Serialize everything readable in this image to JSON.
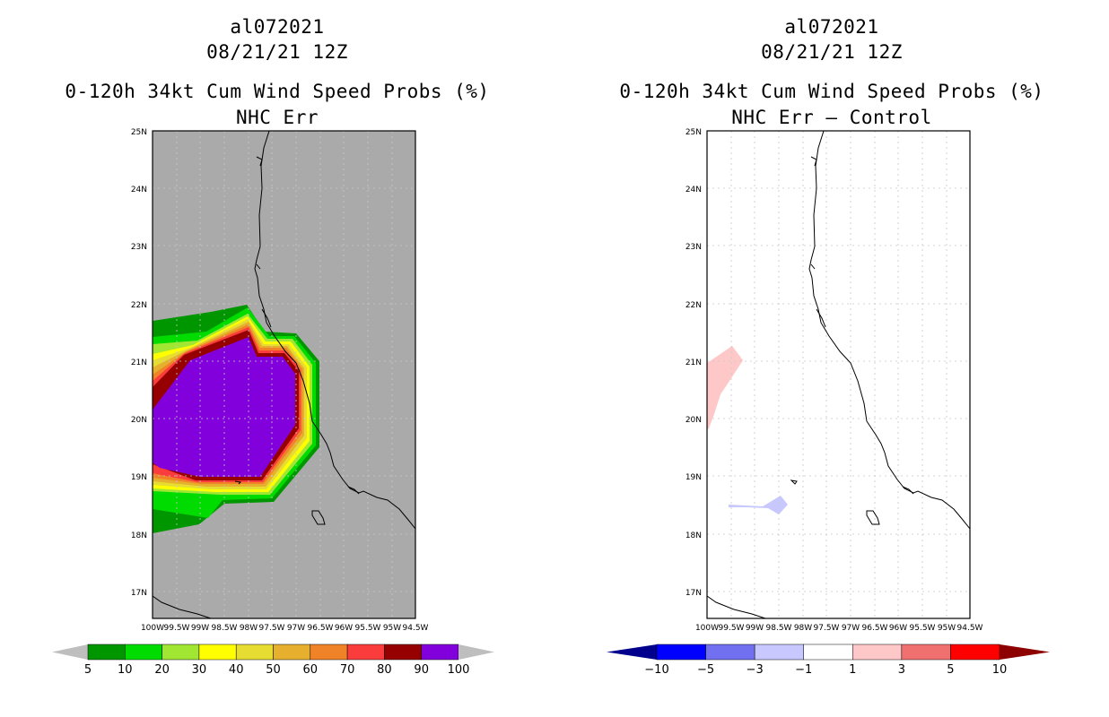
{
  "panels": [
    {
      "storm_id": "al072021",
      "datetime": "08/21/21 12Z",
      "product": "0-120h 34kt Cum Wind Speed Probs (%)",
      "subtitle": "NHC Err",
      "colorbar_labels": [
        "5",
        "10",
        "20",
        "30",
        "40",
        "50",
        "60",
        "70",
        "80",
        "90",
        "100"
      ],
      "colorbar_colors": [
        "#009600",
        "#00dc00",
        "#a0e632",
        "#ffff00",
        "#e6dc32",
        "#e6af2d",
        "#f08228",
        "#fa3c3c",
        "#960000",
        "#8200dc"
      ],
      "colorbar_end_colors": [
        "#bebebe",
        "#bebebe"
      ]
    },
    {
      "storm_id": "al072021",
      "datetime": "08/21/21 12Z",
      "product": "0-120h 34kt Cum Wind Speed Probs (%)",
      "subtitle": "NHC Err – Control",
      "colorbar_labels": [
        "−10",
        "−5",
        "−3",
        "−1",
        "1",
        "3",
        "5",
        "10"
      ],
      "colorbar_colors": [
        "#0000ff",
        "#7070f0",
        "#c8c8ff",
        "#ffffff",
        "#ffc8c8",
        "#f07070",
        "#ff0000"
      ],
      "colorbar_end_colors": [
        "#00008c",
        "#8c0000"
      ]
    }
  ],
  "map": {
    "lat_labels": [
      "25N",
      "24N",
      "23N",
      "22N",
      "21N",
      "20N",
      "19N",
      "18N",
      "17N"
    ],
    "lon_labels": [
      "100W",
      "99.5W",
      "99W",
      "98.5W",
      "98W",
      "97.5W",
      "97W",
      "96.5W",
      "96W",
      "95.5W",
      "95W",
      "94.5W"
    ],
    "lat_range": [
      16.5,
      25
    ],
    "lon_range": [
      -100,
      -94.5
    ]
  }
}
